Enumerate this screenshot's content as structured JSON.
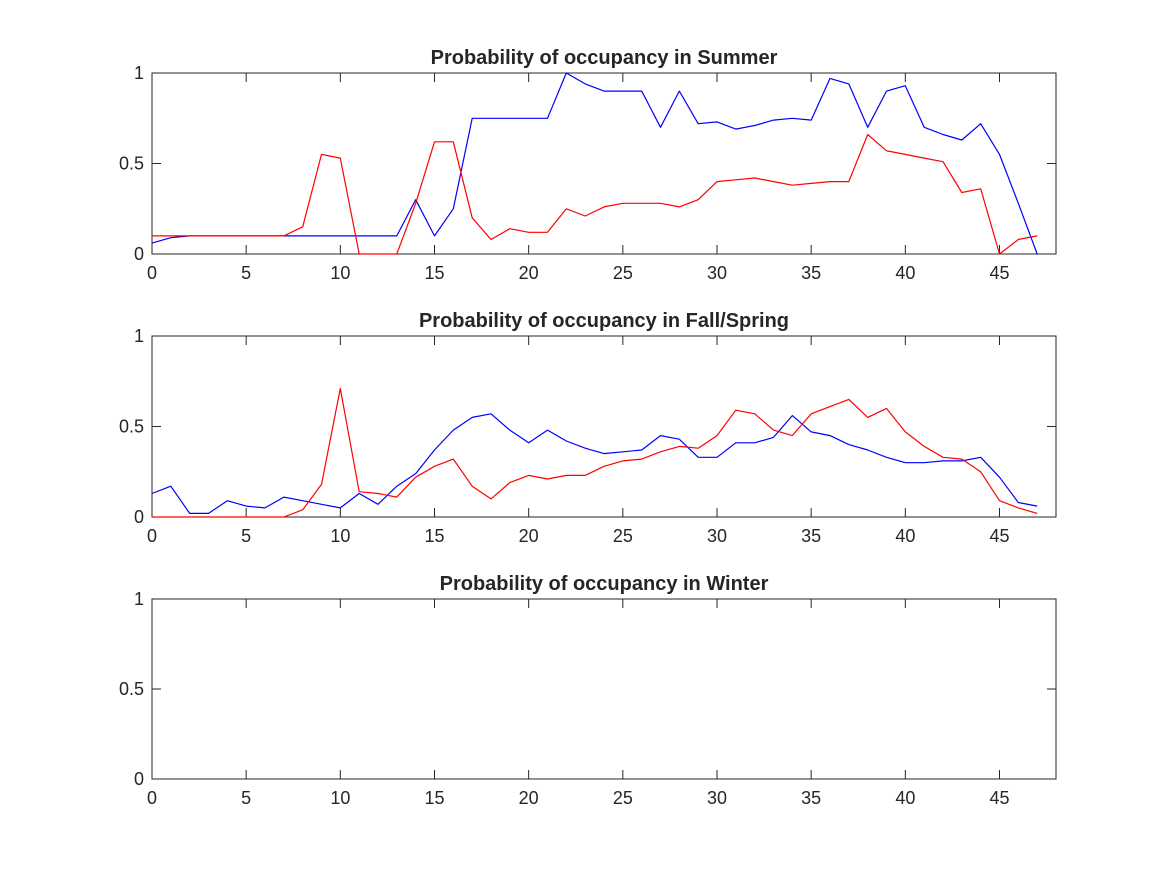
{
  "chart_data": [
    {
      "type": "line",
      "title": "Probability of occupancy in Summer",
      "xlabel": "",
      "ylabel": "",
      "xlim": [
        0,
        48
      ],
      "ylim": [
        0,
        1
      ],
      "xticks": [
        0,
        5,
        10,
        15,
        20,
        25,
        30,
        35,
        40,
        45
      ],
      "yticks": [
        0,
        0.5,
        1
      ],
      "xtick_labels": [
        "0",
        "5",
        "10",
        "15",
        "20",
        "25",
        "30",
        "35",
        "40",
        "45"
      ],
      "ytick_labels": [
        "0",
        "0.5",
        "1"
      ],
      "grid": false,
      "x": [
        0,
        1,
        2,
        3,
        4,
        5,
        6,
        7,
        8,
        9,
        10,
        11,
        12,
        13,
        14,
        15,
        16,
        17,
        18,
        19,
        20,
        21,
        22,
        23,
        24,
        25,
        26,
        27,
        28,
        29,
        30,
        31,
        32,
        33,
        34,
        35,
        36,
        37,
        38,
        39,
        40,
        41,
        42,
        43,
        44,
        45,
        46,
        47
      ],
      "series": [
        {
          "color": "#0000ff",
          "values": [
            0.06,
            0.09,
            0.1,
            0.1,
            0.1,
            0.1,
            0.1,
            0.1,
            0.1,
            0.1,
            0.1,
            0.1,
            0.1,
            0.1,
            0.3,
            0.1,
            0.25,
            0.75,
            0.75,
            0.75,
            0.75,
            0.75,
            1.0,
            0.94,
            0.9,
            0.9,
            0.9,
            0.7,
            0.9,
            0.72,
            0.73,
            0.69,
            0.71,
            0.74,
            0.75,
            0.74,
            0.97,
            0.94,
            0.7,
            0.9,
            0.93,
            0.7,
            0.66,
            0.63,
            0.72,
            0.55,
            0.28,
            0.0
          ]
        },
        {
          "color": "#ff0000",
          "values": [
            0.1,
            0.1,
            0.1,
            0.1,
            0.1,
            0.1,
            0.1,
            0.1,
            0.15,
            0.55,
            0.53,
            0.0,
            0.0,
            0.0,
            0.28,
            0.62,
            0.62,
            0.2,
            0.08,
            0.14,
            0.12,
            0.12,
            0.25,
            0.21,
            0.26,
            0.28,
            0.28,
            0.28,
            0.26,
            0.3,
            0.4,
            0.41,
            0.42,
            0.4,
            0.38,
            0.39,
            0.4,
            0.4,
            0.66,
            0.57,
            0.55,
            0.53,
            0.51,
            0.34,
            0.36,
            0.0,
            0.08,
            0.1
          ]
        }
      ]
    },
    {
      "type": "line",
      "title": "Probability of occupancy in Fall/Spring",
      "xlabel": "",
      "ylabel": "",
      "xlim": [
        0,
        48
      ],
      "ylim": [
        0,
        1
      ],
      "xticks": [
        0,
        5,
        10,
        15,
        20,
        25,
        30,
        35,
        40,
        45
      ],
      "yticks": [
        0,
        0.5,
        1
      ],
      "xtick_labels": [
        "0",
        "5",
        "10",
        "15",
        "20",
        "25",
        "30",
        "35",
        "40",
        "45"
      ],
      "ytick_labels": [
        "0",
        "0.5",
        "1"
      ],
      "grid": false,
      "x": [
        0,
        1,
        2,
        3,
        4,
        5,
        6,
        7,
        8,
        9,
        10,
        11,
        12,
        13,
        14,
        15,
        16,
        17,
        18,
        19,
        20,
        21,
        22,
        23,
        24,
        25,
        26,
        27,
        28,
        29,
        30,
        31,
        32,
        33,
        34,
        35,
        36,
        37,
        38,
        39,
        40,
        41,
        42,
        43,
        44,
        45,
        46,
        47
      ],
      "series": [
        {
          "color": "#0000ff",
          "values": [
            0.13,
            0.17,
            0.02,
            0.02,
            0.09,
            0.06,
            0.05,
            0.11,
            0.09,
            0.07,
            0.05,
            0.13,
            0.07,
            0.17,
            0.24,
            0.37,
            0.48,
            0.55,
            0.57,
            0.48,
            0.41,
            0.48,
            0.42,
            0.38,
            0.35,
            0.36,
            0.37,
            0.45,
            0.43,
            0.33,
            0.33,
            0.41,
            0.41,
            0.44,
            0.56,
            0.47,
            0.45,
            0.4,
            0.37,
            0.33,
            0.3,
            0.3,
            0.31,
            0.31,
            0.33,
            0.22,
            0.08,
            0.06
          ]
        },
        {
          "color": "#ff0000",
          "values": [
            0.0,
            0.0,
            0.0,
            0.0,
            0.0,
            0.0,
            0.0,
            0.0,
            0.04,
            0.18,
            0.71,
            0.14,
            0.13,
            0.11,
            0.22,
            0.28,
            0.32,
            0.17,
            0.1,
            0.19,
            0.23,
            0.21,
            0.23,
            0.23,
            0.28,
            0.31,
            0.32,
            0.36,
            0.39,
            0.38,
            0.45,
            0.59,
            0.57,
            0.48,
            0.45,
            0.57,
            0.61,
            0.65,
            0.55,
            0.6,
            0.47,
            0.39,
            0.33,
            0.32,
            0.25,
            0.09,
            0.05,
            0.02
          ]
        }
      ]
    },
    {
      "type": "line",
      "title": "Probability of occupancy in Winter",
      "xlabel": "",
      "ylabel": "",
      "xlim": [
        0,
        48
      ],
      "ylim": [
        0,
        1
      ],
      "xticks": [
        0,
        5,
        10,
        15,
        20,
        25,
        30,
        35,
        40,
        45
      ],
      "yticks": [
        0,
        0.5,
        1
      ],
      "xtick_labels": [
        "0",
        "5",
        "10",
        "15",
        "20",
        "25",
        "30",
        "35",
        "40",
        "45"
      ],
      "ytick_labels": [
        "0",
        "0.5",
        "1"
      ],
      "grid": false,
      "x": [],
      "series": []
    }
  ]
}
